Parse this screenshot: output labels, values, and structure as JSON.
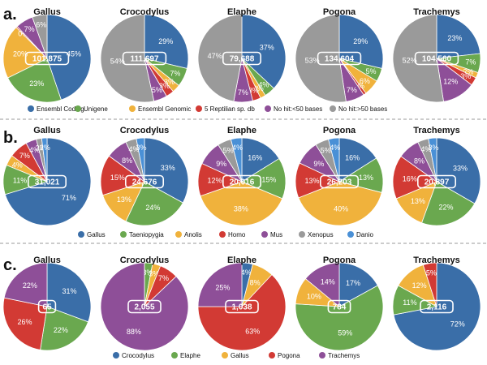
{
  "colors": {
    "blue": "#3a6ea8",
    "green": "#6aa84f",
    "yellow": "#f0b23c",
    "red": "#d23a34",
    "purple": "#8e4f98",
    "gray": "#9a9a9a",
    "lightblue": "#4a90d6"
  },
  "chart_data": [
    {
      "panel": "a.",
      "type": "pie",
      "legend": [
        {
          "label": "Ensembl Coding",
          "color": "blue"
        },
        {
          "label": "Unigene",
          "color": "green"
        },
        {
          "label": "Ensembl Genomic",
          "color": "yellow"
        },
        {
          "label": "5 Reptilian sp. db",
          "color": "red"
        },
        {
          "label": "No hit:<50 bases",
          "color": "purple"
        },
        {
          "label": "No hit:>50 bases",
          "color": "gray"
        }
      ],
      "pies": [
        {
          "title": "Gallus",
          "center": "101,875",
          "slices": [
            {
              "color": "blue",
              "value": 45,
              "label": "45%"
            },
            {
              "color": "green",
              "value": 23,
              "label": "23%"
            },
            {
              "color": "yellow",
              "value": 20,
              "label": "20%"
            },
            {
              "color": "red",
              "value": 0.5,
              "label": "0%"
            },
            {
              "color": "purple",
              "value": 6.5,
              "label": "7%"
            },
            {
              "color": "gray",
              "value": 5.5,
              "label": "6%"
            }
          ]
        },
        {
          "title": "Crocodylus",
          "center": "111,697",
          "slices": [
            {
              "color": "blue",
              "value": 29,
              "label": "29%"
            },
            {
              "color": "green",
              "value": 7,
              "label": "7%"
            },
            {
              "color": "yellow",
              "value": 3,
              "label": "3%"
            },
            {
              "color": "red",
              "value": 3,
              "label": "3%"
            },
            {
              "color": "purple",
              "value": 5,
              "label": "5%"
            },
            {
              "color": "gray",
              "value": 54,
              "label": "54%"
            }
          ]
        },
        {
          "title": "Elaphe",
          "center": "79,688",
          "slices": [
            {
              "color": "blue",
              "value": 37,
              "label": "37%"
            },
            {
              "color": "green",
              "value": 4,
              "label": "4%"
            },
            {
              "color": "yellow",
              "value": 2,
              "label": "2%"
            },
            {
              "color": "red",
              "value": 3,
              "label": "3%"
            },
            {
              "color": "purple",
              "value": 7,
              "label": "7%"
            },
            {
              "color": "gray",
              "value": 47,
              "label": "47%"
            }
          ]
        },
        {
          "title": "Pogona",
          "center": "134,604",
          "slices": [
            {
              "color": "blue",
              "value": 29,
              "label": "29%"
            },
            {
              "color": "green",
              "value": 5,
              "label": "5%"
            },
            {
              "color": "yellow",
              "value": 6,
              "label": "6%"
            },
            {
              "color": "red",
              "value": 1,
              "label": "1%"
            },
            {
              "color": "purple",
              "value": 7,
              "label": "7%"
            },
            {
              "color": "gray",
              "value": 53,
              "label": "53%"
            }
          ]
        },
        {
          "title": "Trachemys",
          "center": "104,560",
          "slices": [
            {
              "color": "blue",
              "value": 23,
              "label": "23%"
            },
            {
              "color": "green",
              "value": 7,
              "label": "7%"
            },
            {
              "color": "yellow",
              "value": 2,
              "label": "2%"
            },
            {
              "color": "red",
              "value": 3,
              "label": "3%"
            },
            {
              "color": "purple",
              "value": 12,
              "label": "12%"
            },
            {
              "color": "gray",
              "value": 52,
              "label": "52%"
            }
          ]
        }
      ]
    },
    {
      "panel": "b.",
      "type": "pie",
      "legend": [
        {
          "label": "Gallus",
          "color": "blue"
        },
        {
          "label": "Taeniopygia",
          "color": "green"
        },
        {
          "label": "Anolis",
          "color": "yellow"
        },
        {
          "label": "Homo",
          "color": "red"
        },
        {
          "label": "Mus",
          "color": "purple"
        },
        {
          "label": "Xenopus",
          "color": "gray"
        },
        {
          "label": "Danio",
          "color": "lightblue"
        }
      ],
      "pies": [
        {
          "title": "Gallus",
          "center": "31,021",
          "slices": [
            {
              "color": "blue",
              "value": 71,
              "label": "71%"
            },
            {
              "color": "green",
              "value": 11,
              "label": "11%"
            },
            {
              "color": "yellow",
              "value": 4,
              "label": "4%"
            },
            {
              "color": "red",
              "value": 7,
              "label": "7%"
            },
            {
              "color": "purple",
              "value": 4,
              "label": "4%"
            },
            {
              "color": "gray",
              "value": 2,
              "label": "2%"
            },
            {
              "color": "lightblue",
              "value": 2,
              "label": "2%"
            }
          ]
        },
        {
          "title": "Crocodylus",
          "center": "24,676",
          "slices": [
            {
              "color": "blue",
              "value": 33,
              "label": "33%"
            },
            {
              "color": "green",
              "value": 24,
              "label": "24%"
            },
            {
              "color": "yellow",
              "value": 13,
              "label": "13%"
            },
            {
              "color": "red",
              "value": 15,
              "label": "15%"
            },
            {
              "color": "purple",
              "value": 8,
              "label": "8%"
            },
            {
              "color": "gray",
              "value": 4,
              "label": "4%"
            },
            {
              "color": "lightblue",
              "value": 3,
              "label": "3%"
            }
          ]
        },
        {
          "title": "Elaphe",
          "center": "20,016",
          "slices": [
            {
              "color": "blue",
              "value": 16,
              "label": "16%"
            },
            {
              "color": "green",
              "value": 15,
              "label": "15%"
            },
            {
              "color": "yellow",
              "value": 38,
              "label": "38%"
            },
            {
              "color": "red",
              "value": 12,
              "label": "12%"
            },
            {
              "color": "purple",
              "value": 9,
              "label": "9%"
            },
            {
              "color": "gray",
              "value": 5,
              "label": "5%"
            },
            {
              "color": "lightblue",
              "value": 4,
              "label": "4%"
            }
          ]
        },
        {
          "title": "Pogona",
          "center": "26,203",
          "slices": [
            {
              "color": "blue",
              "value": 16,
              "label": "16%"
            },
            {
              "color": "green",
              "value": 13,
              "label": "13%"
            },
            {
              "color": "yellow",
              "value": 40,
              "label": "40%"
            },
            {
              "color": "red",
              "value": 13,
              "label": "13%"
            },
            {
              "color": "purple",
              "value": 9,
              "label": "9%"
            },
            {
              "color": "gray",
              "value": 5,
              "label": "5%"
            },
            {
              "color": "lightblue",
              "value": 4,
              "label": "4%"
            }
          ]
        },
        {
          "title": "Trachemys",
          "center": "20,897",
          "slices": [
            {
              "color": "blue",
              "value": 33,
              "label": "33%"
            },
            {
              "color": "green",
              "value": 22,
              "label": "22%"
            },
            {
              "color": "yellow",
              "value": 13,
              "label": "13%"
            },
            {
              "color": "red",
              "value": 16,
              "label": "16%"
            },
            {
              "color": "purple",
              "value": 8,
              "label": "8%"
            },
            {
              "color": "gray",
              "value": 4,
              "label": "4%"
            },
            {
              "color": "lightblue",
              "value": 3,
              "label": "3%"
            }
          ]
        }
      ]
    },
    {
      "panel": "c.",
      "type": "pie",
      "legend": [
        {
          "label": "Crocodylus",
          "color": "blue"
        },
        {
          "label": "Elaphe",
          "color": "green"
        },
        {
          "label": "Gallus",
          "color": "yellow"
        },
        {
          "label": "Pogona",
          "color": "red"
        },
        {
          "label": "Trachemys",
          "color": "purple"
        }
      ],
      "pies": [
        {
          "title": "Gallus",
          "center": "65",
          "slices": [
            {
              "color": "blue",
              "value": 31,
              "label": "31%"
            },
            {
              "color": "green",
              "value": 22,
              "label": "22%"
            },
            {
              "color": "red",
              "value": 26,
              "label": "26%"
            },
            {
              "color": "purple",
              "value": 22,
              "label": "22%"
            }
          ]
        },
        {
          "title": "Crocodylus",
          "center": "2,055",
          "slices": [
            {
              "color": "green",
              "value": 3,
              "label": "3%"
            },
            {
              "color": "yellow",
              "value": 3,
              "label": "3%"
            },
            {
              "color": "red",
              "value": 7,
              "label": "7%"
            },
            {
              "color": "purple",
              "value": 88,
              "label": "88%"
            }
          ]
        },
        {
          "title": "Elaphe",
          "center": "1,038",
          "slices": [
            {
              "color": "blue",
              "value": 4,
              "label": "4%"
            },
            {
              "color": "yellow",
              "value": 8,
              "label": "8%"
            },
            {
              "color": "red",
              "value": 63,
              "label": "63%"
            },
            {
              "color": "purple",
              "value": 25,
              "label": "25%"
            }
          ]
        },
        {
          "title": "Pogona",
          "center": "784",
          "slices": [
            {
              "color": "blue",
              "value": 17,
              "label": "17%"
            },
            {
              "color": "green",
              "value": 59,
              "label": "59%"
            },
            {
              "color": "yellow",
              "value": 10,
              "label": "10%"
            },
            {
              "color": "purple",
              "value": 14,
              "label": "14%"
            }
          ]
        },
        {
          "title": "Trachemys",
          "center": "2,116",
          "slices": [
            {
              "color": "blue",
              "value": 72,
              "label": "72%"
            },
            {
              "color": "green",
              "value": 11,
              "label": "11%"
            },
            {
              "color": "yellow",
              "value": 12,
              "label": "12%"
            },
            {
              "color": "red",
              "value": 5,
              "label": "5%"
            }
          ]
        }
      ]
    }
  ]
}
